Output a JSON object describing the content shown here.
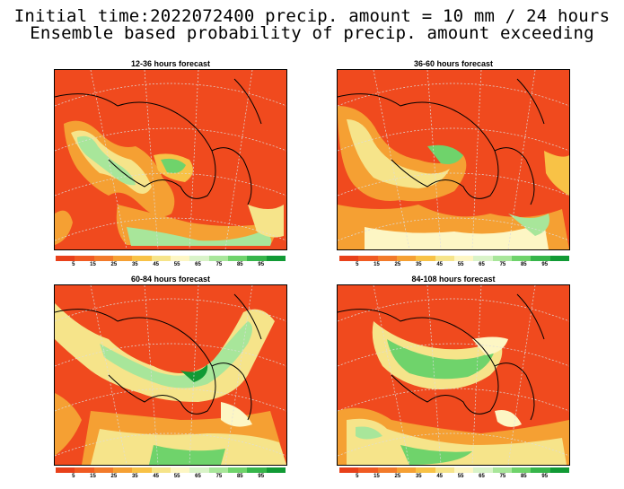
{
  "title_line1": "Initial time:2022072400 precip. amount = 10 mm / 24 hours",
  "title_line2": "Ensemble based probability of precip. amount exceeding",
  "panels": [
    {
      "title": "12-36 hours forecast"
    },
    {
      "title": "36-60 hours forecast"
    },
    {
      "title": "60-84 hours forecast"
    },
    {
      "title": "84-108 hours forecast"
    }
  ],
  "colorbar": {
    "colors": [
      "#e8401a",
      "#f05a22",
      "#f27a2a",
      "#f5a033",
      "#f8c246",
      "#f6e48a",
      "#fdf6c4",
      "#d9f3c8",
      "#a8e69a",
      "#6fd36b",
      "#36b54a",
      "#119a35"
    ],
    "labels": [
      "5",
      "15",
      "25",
      "35",
      "45",
      "55",
      "65",
      "75",
      "85",
      "95"
    ]
  }
}
